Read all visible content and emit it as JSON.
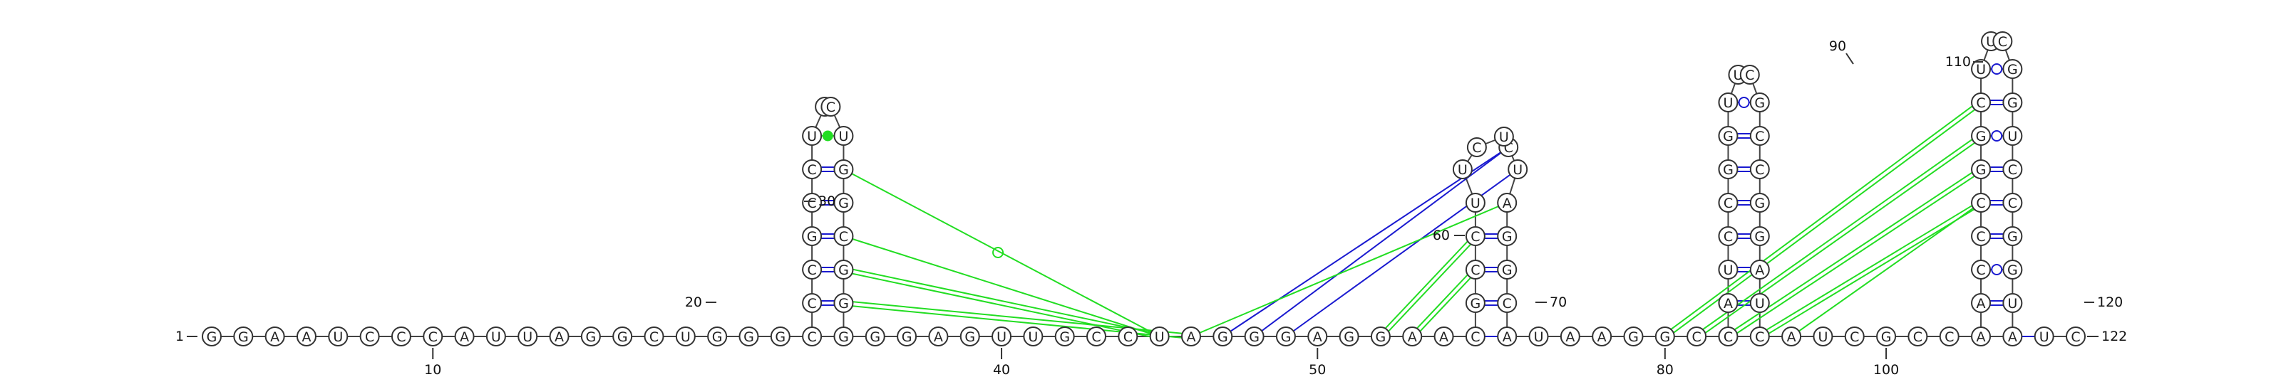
{
  "sequence": "GGAAUCCCAUUAGGCUGGGCGGGAGUUGCCUAGGGAGGAACAUAAGGCCCAUCGCCAAUC",
  "colors": {
    "canonical": "#1a1ad0",
    "noncanonical": "#22dd22",
    "backbone": "#444444",
    "outline": "#333333"
  },
  "hairpin1": {
    "left": [
      "C",
      "C",
      "G",
      "C",
      "C",
      "U"
    ],
    "right": [
      "G",
      "G",
      "C",
      "G",
      "G",
      "U"
    ],
    "loop": [
      "C",
      "C"
    ],
    "pairs": [
      "cww",
      "cww",
      "cww",
      "cww",
      "cww",
      "ncw"
    ]
  },
  "hairpin2": {
    "left": [
      "G",
      "C",
      "C",
      "U",
      "U",
      "C"
    ],
    "right": [
      "C",
      "G",
      "G",
      "A",
      "U",
      "C"
    ],
    "loop": [
      "U"
    ],
    "pairs": [
      "cww",
      "cww",
      "cww",
      "none",
      "none",
      "none"
    ]
  },
  "hairpin3": {
    "left": [
      "A",
      "U",
      "C",
      "C",
      "G",
      "G",
      "U"
    ],
    "right": [
      "U",
      "A",
      "G",
      "G",
      "C",
      "C",
      "G"
    ],
    "loop": [
      "U",
      "C"
    ],
    "pairs": [
      "cww",
      "cww",
      "cww",
      "cww",
      "cww",
      "cww",
      "nwc"
    ]
  },
  "hairpin4": {
    "left": [
      "A",
      "C",
      "C",
      "C",
      "G",
      "G",
      "C",
      "U"
    ],
    "right": [
      "U",
      "G",
      "G",
      "C",
      "C",
      "U",
      "G",
      "G"
    ],
    "loop": [
      "U",
      "C"
    ],
    "pairs": [
      "cww",
      "nwc",
      "cww",
      "cww",
      "cww",
      "nwc",
      "cww",
      "nwc"
    ]
  },
  "numbers": [
    {
      "label": "1"
    },
    {
      "label": "10"
    },
    {
      "label": "20"
    },
    {
      "label": "30"
    },
    {
      "label": "40"
    },
    {
      "label": "50"
    },
    {
      "label": "60"
    },
    {
      "label": "70"
    },
    {
      "label": "80"
    },
    {
      "label": "90"
    },
    {
      "label": "100"
    },
    {
      "label": "110"
    },
    {
      "label": "120"
    },
    {
      "label": "122"
    }
  ]
}
